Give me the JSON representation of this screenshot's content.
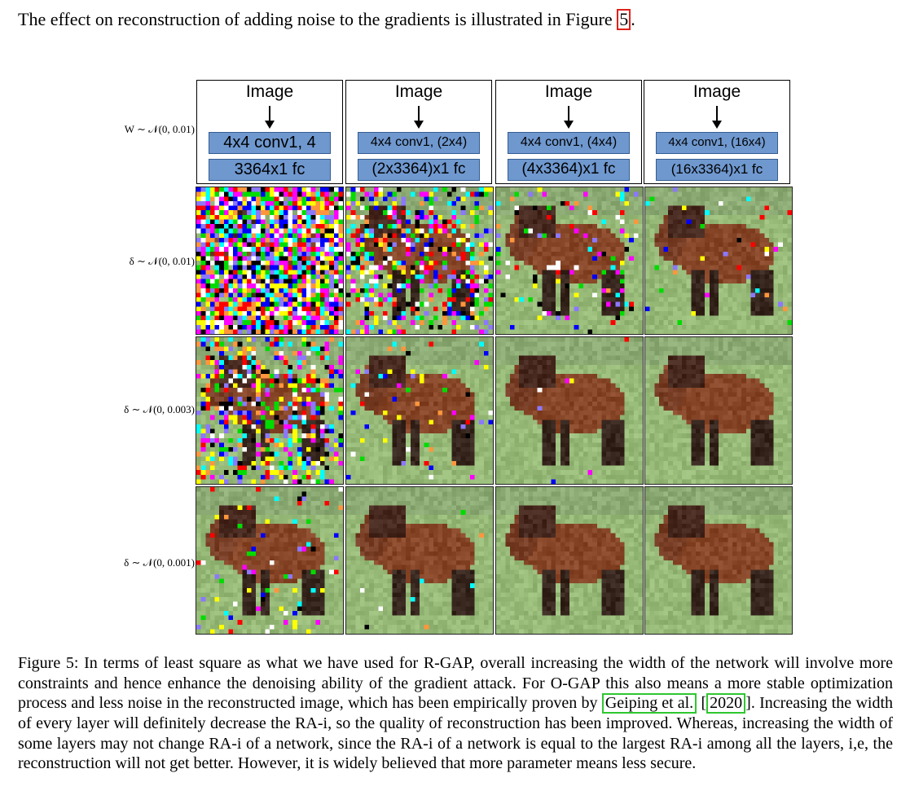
{
  "intro": {
    "before": "The effect on reconstruction of adding noise to the gradients is illustrated in Figure ",
    "ref": "5",
    "after": "."
  },
  "figure": {
    "row_labels": [
      "W ∼ 𝒩(0, 0.01)",
      "δ ∼ 𝒩(0, 0.01)",
      "δ ∼ 𝒩(0, 0.003)",
      "δ ∼ 𝒩(0, 0.001)"
    ],
    "architectures": [
      {
        "title": "Image",
        "layer1": "4x4 conv1, 4",
        "layer2": "3364x1 fc"
      },
      {
        "title": "Image",
        "layer1": "4x4 conv1, (2x4)",
        "layer2": "(2x3364)x1 fc"
      },
      {
        "title": "Image",
        "layer1": "4x4 conv1, (4x4)",
        "layer2": "(4x3364)x1 fc"
      },
      {
        "title": "Image",
        "layer1": "4x4 conv1, (16x4)",
        "layer2": "(16x3364)x1 fc"
      }
    ],
    "noise_levels": [
      [
        0.95,
        0.45,
        0.12,
        0.03
      ],
      [
        0.42,
        0.05,
        0.01,
        0.0
      ],
      [
        0.07,
        0.01,
        0.0,
        0.0
      ]
    ],
    "colors": {
      "layer_fill": "#6f98cf",
      "layer_border": "#355d92",
      "ref_red": "#e0201a",
      "ref_green": "#2fc72f"
    }
  },
  "caption": {
    "part1": "Figure 5: In terms of least square as what we have used for R-GAP, overall increasing the width of the network will involve more constraints and hence enhance the denoising ability of the gradient attack. For O-GAP this also means a more stable optimization process and less noise in the reconstructed image, which has been empirically proven by ",
    "cite_author": "Geiping et al.",
    "cite_sep": " ",
    "cite_year": "2020",
    "part2": ". Increasing the width of every layer will definitely decrease the RA-i, so the quality of reconstruction has been improved. Whereas, increasing the width of some layers may not change RA-i of a network, since the RA-i of a network is equal to the largest RA-i among all the layers, i,e, the reconstruction will not get better. However, it is widely believed that more parameter means less secure."
  }
}
